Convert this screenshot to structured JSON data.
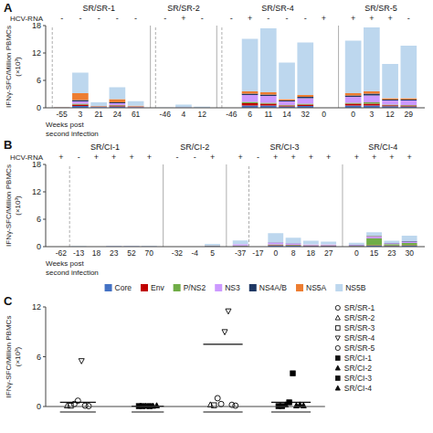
{
  "chart_data": [
    {
      "type": "bar",
      "stacked": true,
      "panel": "A",
      "ylabel": "IFNγ-SFC/Million PBMCs\n(×10³)",
      "xlabel": "Weeks post\nsecond infection",
      "hcv_rna_label": "HCV-RNA",
      "ylim": [
        0,
        18
      ],
      "yticks": [
        0,
        6,
        12,
        18
      ],
      "categories": [
        "-55",
        "3",
        "21",
        "24",
        "61",
        "-46",
        "4",
        "12",
        "-46",
        "6",
        "11",
        "14",
        "32",
        "0",
        "0",
        "3",
        "12",
        "29"
      ],
      "hcv_rna": [
        "-",
        "-",
        "-",
        "-",
        "-",
        "-",
        "+",
        "-",
        "-",
        "+",
        "-",
        "-",
        "-",
        "+",
        "+",
        "+",
        "+",
        "-"
      ],
      "groups": [
        {
          "name": "SR/SR-1",
          "size": 5,
          "dashed_idx": 0
        },
        {
          "name": "SR/SR-2",
          "size": 3,
          "dashed_idx": 0
        },
        {
          "name": "SR/SR-4",
          "size": 6,
          "dashed_idx": 0
        },
        {
          "name": "SR/SR-5",
          "size": 4
        }
      ],
      "series": [
        {
          "name": "Core",
          "color": "#4472C4",
          "values": [
            0.05,
            0.4,
            0.15,
            0.3,
            0.1,
            0.0,
            0.05,
            0.05,
            0.0,
            0.5,
            0.5,
            0.3,
            0.4,
            0.0,
            0.5,
            0.5,
            0.35,
            0.3
          ]
        },
        {
          "name": "Env",
          "color": "#C00000",
          "values": [
            0.0,
            0.3,
            0.0,
            0.2,
            0.05,
            0.0,
            0.0,
            0.0,
            0.0,
            0.5,
            0.4,
            0.2,
            0.3,
            0.0,
            0.4,
            0.4,
            0.2,
            0.2
          ]
        },
        {
          "name": "P/NS2",
          "color": "#70AD47",
          "values": [
            0.0,
            0.2,
            0.0,
            0.1,
            0.0,
            0.0,
            0.0,
            0.0,
            0.0,
            0.3,
            0.2,
            0.1,
            0.2,
            0.0,
            0.2,
            0.3,
            0.15,
            0.1
          ]
        },
        {
          "name": "NS3",
          "color": "#CC99FF",
          "values": [
            0.0,
            0.5,
            0.1,
            0.4,
            0.1,
            0.0,
            0.05,
            0.0,
            0.0,
            1.5,
            1.5,
            0.8,
            1.2,
            0.0,
            1.3,
            1.5,
            0.9,
            1.0
          ]
        },
        {
          "name": "NS4A/B",
          "color": "#1F3864",
          "values": [
            0.0,
            0.3,
            0.05,
            0.2,
            0.05,
            0.0,
            0.0,
            0.0,
            0.0,
            0.3,
            0.3,
            0.2,
            0.3,
            0.0,
            0.3,
            0.4,
            0.2,
            0.2
          ]
        },
        {
          "name": "NS5A",
          "color": "#ED7D31",
          "values": [
            0.05,
            1.5,
            0.1,
            0.7,
            0.15,
            0.0,
            0.0,
            0.0,
            0.0,
            0.5,
            0.5,
            0.3,
            0.4,
            0.0,
            0.5,
            0.5,
            0.3,
            0.3
          ]
        },
        {
          "name": "NS5B",
          "color": "#BDD7EE",
          "values": [
            0.0,
            4.5,
            0.8,
            2.6,
            1.0,
            0.05,
            0.6,
            0.2,
            0.0,
            11.5,
            14.0,
            8.0,
            11.5,
            0.0,
            11.5,
            14.0,
            7.5,
            11.5
          ]
        }
      ]
    },
    {
      "type": "bar",
      "stacked": true,
      "panel": "B",
      "ylabel": "IFNγ-SFC/Million PBMCs\n(×10³)",
      "xlabel": "Weeks post\nsecond infection",
      "hcv_rna_label": "HCV-RNA",
      "ylim": [
        0,
        18
      ],
      "yticks": [
        0,
        6,
        12,
        18
      ],
      "categories": [
        "-62",
        "-13",
        "18",
        "23",
        "52",
        "70",
        "-32",
        "-4",
        "5",
        "-37",
        "-17",
        "0",
        "8",
        "18",
        "27",
        "0",
        "15",
        "23",
        "30"
      ],
      "hcv_rna": [
        "+",
        "-",
        "+",
        "+",
        "+",
        "+",
        "-",
        "-",
        "+",
        "+",
        "-",
        "+",
        "+",
        "+",
        "+",
        "+",
        "+",
        "+",
        "+"
      ],
      "groups": [
        {
          "name": "SR/CI-1",
          "size": 6,
          "dashed_idx": 1
        },
        {
          "name": "SR/CI-2",
          "size": 3
        },
        {
          "name": "SR/CI-3",
          "size": 6,
          "dashed_idx": 1
        },
        {
          "name": "SR/CI-4",
          "size": 4
        }
      ],
      "series": [
        {
          "color": "#4472C4",
          "values": [
            0.0,
            0.0,
            0.0,
            0.05,
            0.05,
            0.05,
            0.0,
            0.0,
            0.05,
            0.1,
            0.0,
            0.25,
            0.2,
            0.15,
            0.15,
            0.1,
            0.2,
            0.15,
            0.2
          ]
        },
        {
          "color": "#C00000",
          "values": [
            0.0,
            0.0,
            0.0,
            0.0,
            0.0,
            0.0,
            0.0,
            0.0,
            0.0,
            0.05,
            0.0,
            0.1,
            0.1,
            0.1,
            0.1,
            0.05,
            0.1,
            0.1,
            0.1
          ]
        },
        {
          "color": "#70AD47",
          "values": [
            0.0,
            0.0,
            0.0,
            0.0,
            0.0,
            0.0,
            0.0,
            0.0,
            0.05,
            0.1,
            0.0,
            0.15,
            0.1,
            0.05,
            0.05,
            0.05,
            1.5,
            0.3,
            0.5
          ]
        },
        {
          "color": "#CC99FF",
          "values": [
            0.0,
            0.0,
            0.0,
            0.05,
            0.05,
            0.0,
            0.0,
            0.0,
            0.05,
            0.3,
            0.0,
            0.4,
            0.3,
            0.2,
            0.2,
            0.15,
            0.4,
            0.2,
            0.3
          ]
        },
        {
          "color": "#1F3864",
          "values": [
            0.0,
            0.0,
            0.0,
            0.0,
            0.0,
            0.0,
            0.0,
            0.0,
            0.05,
            0.0,
            0.0,
            0.05,
            0.05,
            0.0,
            0.0,
            0.1,
            0.1,
            0.05,
            0.1
          ]
        },
        {
          "color": "#ED7D31",
          "values": [
            0.0,
            0.0,
            0.0,
            0.0,
            0.0,
            0.0,
            0.0,
            0.0,
            0.05,
            0.0,
            0.0,
            0.0,
            0.0,
            0.0,
            0.0,
            0.0,
            0.05,
            0.0,
            0.0
          ]
        },
        {
          "color": "#BDD7EE",
          "values": [
            0.0,
            0.1,
            0.0,
            0.1,
            0.1,
            0.05,
            0.0,
            0.0,
            0.35,
            0.8,
            0.0,
            2.0,
            1.2,
            0.8,
            0.6,
            0.4,
            0.8,
            0.5,
            1.2
          ]
        }
      ]
    },
    {
      "type": "scatter",
      "panel": "C",
      "ylabel": "IFNγ-SFC/Million PBMCs\n(×10³)",
      "xlim": [
        0.6,
        4.5
      ],
      "ylim": [
        0,
        12
      ],
      "yticks": [
        0,
        6,
        12
      ],
      "tick_labels": "y",
      "series": [
        {
          "color": "#000000",
          "x": [
            1.0,
            1.05,
            0.9,
            0.95,
            1.1,
            1.15,
            1.2
          ],
          "values": [
            0.3,
            0.7,
            0.1,
            0.1,
            5.5,
            0.1,
            0.05
          ],
          "markers": [
            "circle-open",
            "circle-open",
            "triangle-up-open",
            "square-open",
            "triangle-down-open",
            "circle-open",
            "circle-open"
          ]
        },
        {
          "color": "#000000",
          "x": [
            1.9,
            1.95,
            2.0,
            2.05,
            2.1,
            2.15
          ],
          "values": [
            0.05,
            0.05,
            0.05,
            0.05,
            0.05,
            0.1
          ],
          "markers": [
            "square-filled",
            "square-filled",
            "triangle-up-filled",
            "square-filled",
            "triangle-up-filled",
            "triangle-up-filled"
          ]
        },
        {
          "color": "#000000",
          "x": [
            3.0,
            3.05,
            2.9,
            2.95,
            3.1,
            3.15,
            3.2,
            3.25
          ],
          "values": [
            1.0,
            0.3,
            0.2,
            0.15,
            9.0,
            11.5,
            0.2,
            0.1
          ],
          "markers": [
            "circle-open",
            "circle-open",
            "triangle-up-open",
            "square-open",
            "triangle-down-open",
            "triangle-down-open",
            "circle-open",
            "circle-open"
          ]
        },
        {
          "color": "#000000",
          "x": [
            3.85,
            3.9,
            3.95,
            4.0,
            4.05,
            4.1,
            4.15,
            4.2
          ],
          "values": [
            0.05,
            0.05,
            0.2,
            0.5,
            4.0,
            0.1,
            0.2,
            0.1
          ],
          "markers": [
            "square-filled",
            "square-filled",
            "triangle-up-filled",
            "square-filled",
            "square-filled",
            "triangle-up-filled",
            "triangle-up-filled",
            "triangle-up-filled"
          ]
        }
      ],
      "mean_lines": [
        {
          "x1": 0.8,
          "x2": 1.3,
          "y": 0.5
        },
        {
          "x1": 1.8,
          "x2": 2.25,
          "y": 0.05
        },
        {
          "x1": 2.8,
          "x2": 3.35,
          "y": 7.5
        },
        {
          "x1": 3.75,
          "x2": 4.3,
          "y": 0.5
        }
      ],
      "legend_entries": [
        {
          "label": "SR/SR-1",
          "marker": "circle-open"
        },
        {
          "label": "SR/SR-2",
          "marker": "triangle-up-open"
        },
        {
          "label": "SR/SR-3",
          "marker": "square-open"
        },
        {
          "label": "SR/SR-4",
          "marker": "triangle-down-open"
        },
        {
          "label": "SR/SR-5",
          "marker": "circle-open"
        },
        {
          "label": "SR/CI-1",
          "marker": "square-filled"
        },
        {
          "label": "SR/CI-2",
          "marker": "triangle-up-filled"
        },
        {
          "label": "SR/CI-3",
          "marker": "square-filled"
        },
        {
          "label": "SR/CI-4",
          "marker": "triangle-up-filled"
        }
      ]
    }
  ]
}
